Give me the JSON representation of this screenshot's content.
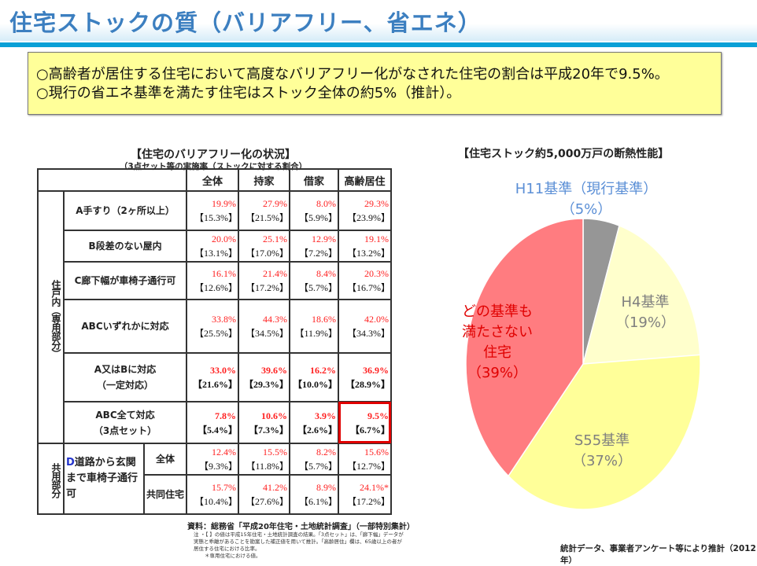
{
  "header": {
    "title": "住宅ストックの質（バリアフリー、省エネ）"
  },
  "summary": [
    "○高齢者が居住する住宅において高度なバリアフリー化がなされた住宅の割合は平成20年で9.5%。",
    "○現行の省エネ基準を満たす住宅はストック全体の約5%（推計）。"
  ],
  "table": {
    "title": "【住宅のバリアフリー化の状況】",
    "subtitle": "（3点セット等の実施率（ストックに対する割合）",
    "columns": [
      "全体",
      "持家",
      "借家",
      "高齢居住"
    ],
    "section_private": "住戸内（専用部分）",
    "section_common": "共用部分",
    "rows": [
      {
        "label": "A手すり（2ヶ所以上）",
        "values": [
          [
            "19.9%",
            "【15.3%】"
          ],
          [
            "27.9%",
            "【21.5%】"
          ],
          [
            "8.0%",
            "【5.9%】"
          ],
          [
            "29.3%",
            "【23.9%】"
          ]
        ]
      },
      {
        "label": "B段差のない屋内",
        "values": [
          [
            "20.0%",
            "【13.1%】"
          ],
          [
            "25.1%",
            "【17.0%】"
          ],
          [
            "12.9%",
            "【7.2%】"
          ],
          [
            "19.1%",
            "【13.2%】"
          ]
        ]
      },
      {
        "label": "C廊下幅が車椅子通行可",
        "values": [
          [
            "16.1%",
            "【12.6%】"
          ],
          [
            "21.4%",
            "【17.2%】"
          ],
          [
            "8.4%",
            "【5.7%】"
          ],
          [
            "20.3%",
            "【16.7%】"
          ]
        ]
      },
      {
        "label": "ABCいずれかに対応",
        "values": [
          [
            "33.8%",
            "【25.5%】"
          ],
          [
            "44.3%",
            "【34.5%】"
          ],
          [
            "18.6%",
            "【11.9%】"
          ],
          [
            "42.0%",
            "【34.3%】"
          ]
        ]
      },
      {
        "label": "A又はBに対応",
        "label2": "（一定対応）",
        "values": [
          [
            "33.0%",
            "【21.6%】"
          ],
          [
            "39.6%",
            "【29.3%】"
          ],
          [
            "16.2%",
            "【10.0%】"
          ],
          [
            "36.9%",
            "【28.9%】"
          ]
        ]
      },
      {
        "label": "ABC全て対応",
        "label2": "（3点セット）",
        "values": [
          [
            "7.8%",
            "【5.4%】"
          ],
          [
            "10.6%",
            "【7.3%】"
          ],
          [
            "3.9%",
            "【2.6%】"
          ],
          [
            "9.5%",
            "【6.7%】"
          ]
        ]
      }
    ],
    "common": {
      "label_prefix": "D",
      "label": "道路から玄関まで車椅子通行可",
      "rows": [
        {
          "sub": "全体",
          "values": [
            [
              "12.4%",
              "【9.3%】"
            ],
            [
              "15.5%",
              "【11.8%】"
            ],
            [
              "8.2%",
              "【5.7%】"
            ],
            [
              "15.6%",
              "【12.7%】"
            ]
          ]
        },
        {
          "sub": "共同住宅",
          "values": [
            [
              "15.7%",
              "【10.4%】"
            ],
            [
              "41.2%",
              "【27.6%】"
            ],
            [
              "8.9%",
              "【6.1%】"
            ],
            [
              "24.1%*",
              "【17.2%】"
            ]
          ]
        }
      ]
    },
    "source": "資料：総務省「平成20年住宅・土地統計調査」（一部特別集計）",
    "notes": [
      "注 ・【 】の値は平成15年住宅・土地統計調査の結果。「3点セット」は、「廊下幅」データが実態と乖離があることを勘案した補正値を用いて推計。「高齢居住」欄は、65歳以上の者が居住する住宅における比率。",
      "＊専用住宅における値。"
    ]
  },
  "chart_data": {
    "type": "pie",
    "title": "【住宅ストック約5,000万戸の断熱性能】",
    "slices": [
      {
        "label": "H11基準（現行基準）",
        "pct_label": "（5%）",
        "value": 5,
        "color": "#969696",
        "label_color": "#5b8fd6"
      },
      {
        "label": "H4基準",
        "pct_label": "（19%）",
        "value": 19,
        "color": "#ffffcc",
        "label_color": "#7f7f7f"
      },
      {
        "label": "S55基準",
        "pct_label": "（37%）",
        "value": 37,
        "color": "#ffff99",
        "label_color": "#7f7f7f"
      },
      {
        "label": "どの基準も満たさない住宅",
        "label_lines": [
          "どの基準も",
          "満たさない",
          "住宅"
        ],
        "pct_label": "（39%）",
        "value": 39,
        "color": "#ff7c80",
        "label_color": "#e00000"
      }
    ],
    "start": "12 o'clock",
    "direction": "clockwise"
  },
  "credit": "統計データ、事業者アンケート等により推計（2012年）"
}
